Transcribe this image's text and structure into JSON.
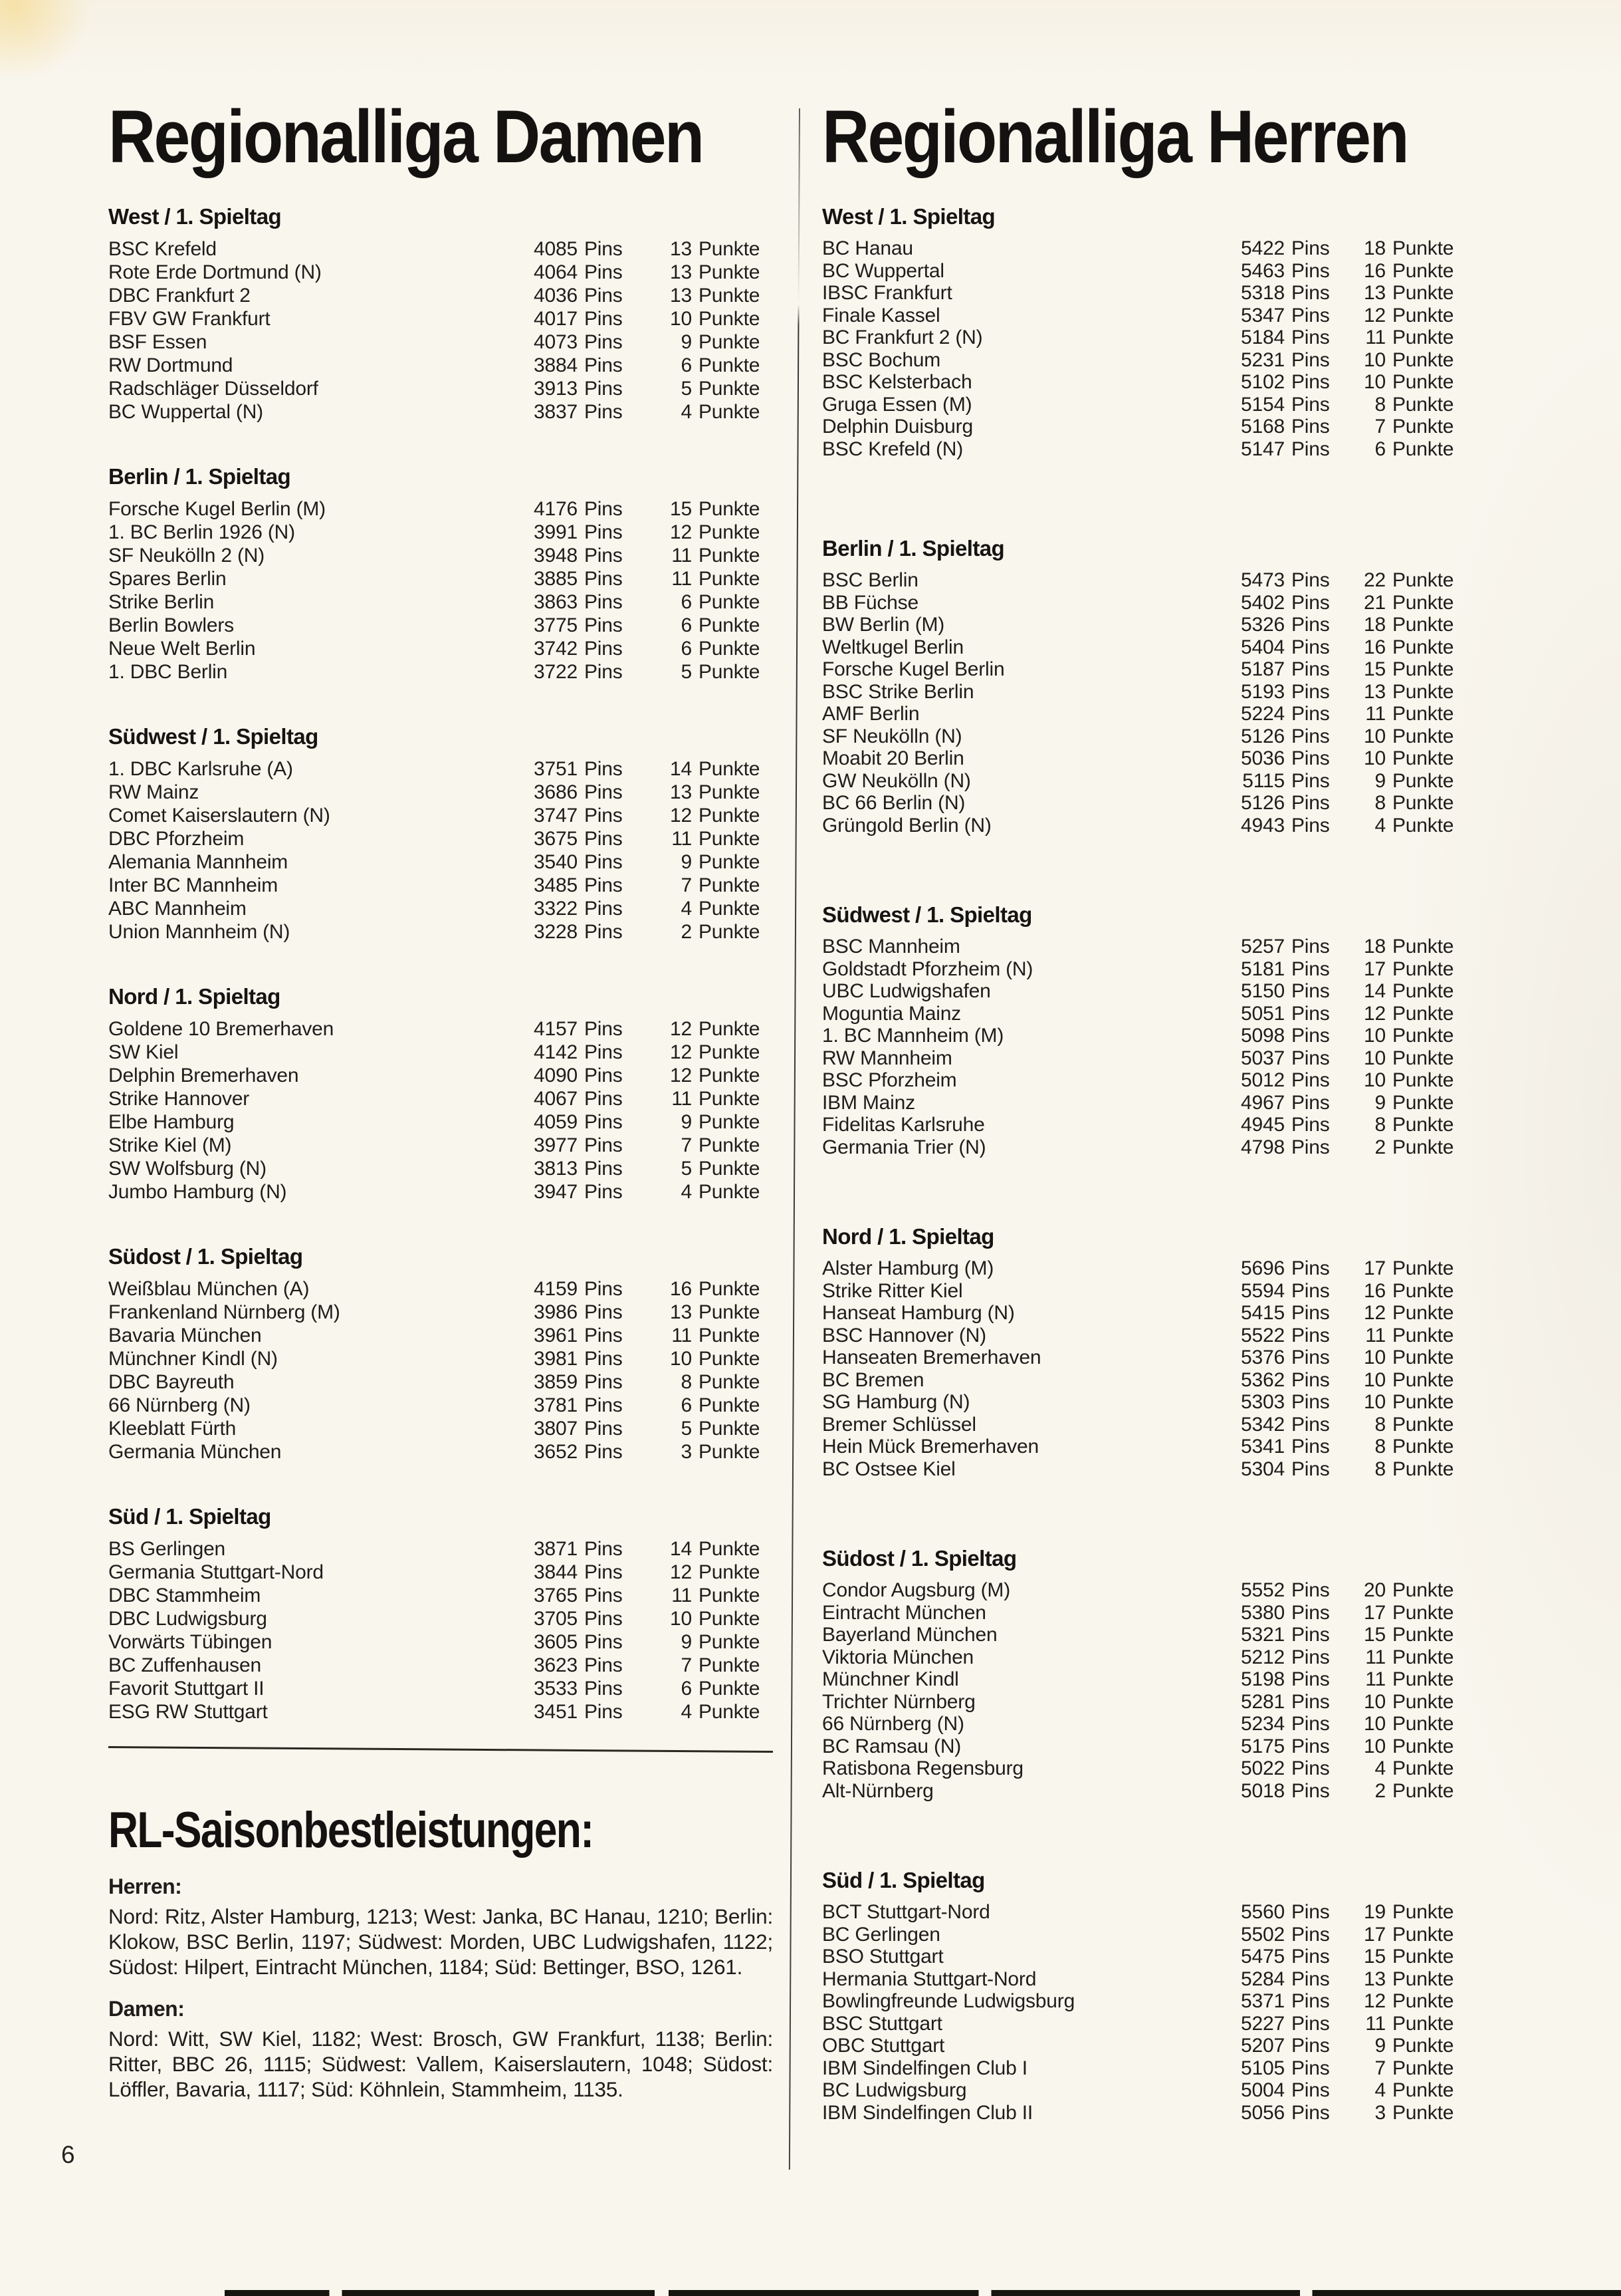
{
  "page": {
    "number": "6"
  },
  "units": {
    "pins": "Pins",
    "punkte": "Punkte"
  },
  "left": {
    "title": "Regionalliga Damen",
    "sections": [
      {
        "header": "West / 1. Spieltag",
        "rows": [
          {
            "club": "BSC Krefeld",
            "pins": "4085",
            "punkte": "13"
          },
          {
            "club": "Rote Erde Dortmund (N)",
            "pins": "4064",
            "punkte": "13"
          },
          {
            "club": "DBC Frankfurt 2",
            "pins": "4036",
            "punkte": "13"
          },
          {
            "club": "FBV GW Frankfurt",
            "pins": "4017",
            "punkte": "10"
          },
          {
            "club": "BSF Essen",
            "pins": "4073",
            "punkte": "9"
          },
          {
            "club": "RW Dortmund",
            "pins": "3884",
            "punkte": "6"
          },
          {
            "club": "Radschläger Düsseldorf",
            "pins": "3913",
            "punkte": "5"
          },
          {
            "club": "BC Wuppertal (N)",
            "pins": "3837",
            "punkte": "4"
          }
        ]
      },
      {
        "header": "Berlin / 1. Spieltag",
        "rows": [
          {
            "club": "Forsche Kugel Berlin (M)",
            "pins": "4176",
            "punkte": "15"
          },
          {
            "club": "1. BC Berlin 1926 (N)",
            "pins": "3991",
            "punkte": "12"
          },
          {
            "club": "SF Neukölln 2 (N)",
            "pins": "3948",
            "punkte": "11"
          },
          {
            "club": "Spares Berlin",
            "pins": "3885",
            "punkte": "11"
          },
          {
            "club": "Strike Berlin",
            "pins": "3863",
            "punkte": "6"
          },
          {
            "club": "Berlin Bowlers",
            "pins": "3775",
            "punkte": "6"
          },
          {
            "club": "Neue Welt Berlin",
            "pins": "3742",
            "punkte": "6"
          },
          {
            "club": "1. DBC Berlin",
            "pins": "3722",
            "punkte": "5"
          }
        ]
      },
      {
        "header": "Südwest / 1. Spieltag",
        "rows": [
          {
            "club": "1. DBC Karlsruhe (A)",
            "pins": "3751",
            "punkte": "14"
          },
          {
            "club": "RW Mainz",
            "pins": "3686",
            "punkte": "13"
          },
          {
            "club": "Comet Kaiserslautern (N)",
            "pins": "3747",
            "punkte": "12"
          },
          {
            "club": "DBC Pforzheim",
            "pins": "3675",
            "punkte": "11"
          },
          {
            "club": "Alemania Mannheim",
            "pins": "3540",
            "punkte": "9"
          },
          {
            "club": "Inter BC Mannheim",
            "pins": "3485",
            "punkte": "7"
          },
          {
            "club": "ABC Mannheim",
            "pins": "3322",
            "punkte": "4"
          },
          {
            "club": "Union Mannheim (N)",
            "pins": "3228",
            "punkte": "2"
          }
        ]
      },
      {
        "header": "Nord / 1. Spieltag",
        "rows": [
          {
            "club": "Goldene 10 Bremerhaven",
            "pins": "4157",
            "punkte": "12"
          },
          {
            "club": "SW Kiel",
            "pins": "4142",
            "punkte": "12"
          },
          {
            "club": "Delphin Bremerhaven",
            "pins": "4090",
            "punkte": "12"
          },
          {
            "club": "Strike Hannover",
            "pins": "4067",
            "punkte": "11"
          },
          {
            "club": "Elbe Hamburg",
            "pins": "4059",
            "punkte": "9"
          },
          {
            "club": "Strike Kiel (M)",
            "pins": "3977",
            "punkte": "7"
          },
          {
            "club": "SW Wolfsburg (N)",
            "pins": "3813",
            "punkte": "5"
          },
          {
            "club": "Jumbo Hamburg (N)",
            "pins": "3947",
            "punkte": "4"
          }
        ]
      },
      {
        "header": "Südost / 1. Spieltag",
        "rows": [
          {
            "club": "Weißblau München (A)",
            "pins": "4159",
            "punkte": "16"
          },
          {
            "club": "Frankenland Nürnberg (M)",
            "pins": "3986",
            "punkte": "13"
          },
          {
            "club": "Bavaria München",
            "pins": "3961",
            "punkte": "11"
          },
          {
            "club": "Münchner Kindl (N)",
            "pins": "3981",
            "punkte": "10"
          },
          {
            "club": "DBC Bayreuth",
            "pins": "3859",
            "punkte": "8"
          },
          {
            "club": "66 Nürnberg (N)",
            "pins": "3781",
            "punkte": "6"
          },
          {
            "club": "Kleeblatt Fürth",
            "pins": "3807",
            "punkte": "5"
          },
          {
            "club": "Germania München",
            "pins": "3652",
            "punkte": "3"
          }
        ]
      },
      {
        "header": "Süd / 1. Spieltag",
        "rows": [
          {
            "club": "BS Gerlingen",
            "pins": "3871",
            "punkte": "14"
          },
          {
            "club": "Germania Stuttgart-Nord",
            "pins": "3844",
            "punkte": "12"
          },
          {
            "club": "DBC Stammheim",
            "pins": "3765",
            "punkte": "11"
          },
          {
            "club": "DBC Ludwigsburg",
            "pins": "3705",
            "punkte": "10"
          },
          {
            "club": "Vorwärts Tübingen",
            "pins": "3605",
            "punkte": "9"
          },
          {
            "club": "BC Zuffenhausen",
            "pins": "3623",
            "punkte": "7"
          },
          {
            "club": "Favorit Stuttgart II",
            "pins": "3533",
            "punkte": "6"
          },
          {
            "club": "ESG RW Stuttgart",
            "pins": "3451",
            "punkte": "4"
          }
        ]
      }
    ],
    "best": {
      "title": "RL-Saisonbestleistungen:",
      "groups": [
        {
          "label": "Herren:",
          "text": "Nord: Ritz, Alster Hamburg, 1213; West: Janka, BC Hanau, 1210; Berlin: Klokow, BSC Berlin, 1197; Südwest: Morden, UBC Ludwigshafen, 1122; Südost: Hilpert, Eintracht München, 1184; Süd: Bettinger, BSO, 1261."
        },
        {
          "label": "Damen:",
          "text": "Nord: Witt, SW Kiel, 1182; West: Brosch, GW Frankfurt, 1138; Berlin: Ritter, BBC 26, 1115; Südwest: Vallem, Kaiserslautern, 1048; Südost: Löffler, Bavaria, 1117; Süd: Köhnlein, Stammheim, 1135."
        }
      ]
    }
  },
  "right": {
    "title": "Regionalliga Herren",
    "sections": [
      {
        "header": "West / 1. Spieltag",
        "rows": [
          {
            "club": "BC Hanau",
            "pins": "5422",
            "punkte": "18"
          },
          {
            "club": "BC Wuppertal",
            "pins": "5463",
            "punkte": "16"
          },
          {
            "club": "IBSC Frankfurt",
            "pins": "5318",
            "punkte": "13"
          },
          {
            "club": "Finale Kassel",
            "pins": "5347",
            "punkte": "12"
          },
          {
            "club": "BC Frankfurt 2 (N)",
            "pins": "5184",
            "punkte": "11"
          },
          {
            "club": "BSC Bochum",
            "pins": "5231",
            "punkte": "10"
          },
          {
            "club": "BSC Kelsterbach",
            "pins": "5102",
            "punkte": "10"
          },
          {
            "club": "Gruga Essen (M)",
            "pins": "5154",
            "punkte": "8"
          },
          {
            "club": "Delphin Duisburg",
            "pins": "5168",
            "punkte": "7"
          },
          {
            "club": "BSC Krefeld (N)",
            "pins": "5147",
            "punkte": "6"
          }
        ]
      },
      {
        "header": "Berlin / 1. Spieltag",
        "rows": [
          {
            "club": "BSC Berlin",
            "pins": "5473",
            "punkte": "22"
          },
          {
            "club": "BB Füchse",
            "pins": "5402",
            "punkte": "21"
          },
          {
            "club": "BW Berlin (M)",
            "pins": "5326",
            "punkte": "18"
          },
          {
            "club": "Weltkugel Berlin",
            "pins": "5404",
            "punkte": "16"
          },
          {
            "club": "Forsche Kugel Berlin",
            "pins": "5187",
            "punkte": "15"
          },
          {
            "club": "BSC Strike Berlin",
            "pins": "5193",
            "punkte": "13"
          },
          {
            "club": "AMF Berlin",
            "pins": "5224",
            "punkte": "11"
          },
          {
            "club": "SF Neukölln (N)",
            "pins": "5126",
            "punkte": "10"
          },
          {
            "club": "Moabit 20 Berlin",
            "pins": "5036",
            "punkte": "10"
          },
          {
            "club": "GW Neukölln (N)",
            "pins": "5115",
            "punkte": "9"
          },
          {
            "club": "BC 66 Berlin (N)",
            "pins": "5126",
            "punkte": "8"
          },
          {
            "club": "Grüngold Berlin (N)",
            "pins": "4943",
            "punkte": "4"
          }
        ]
      },
      {
        "header": "Südwest / 1. Spieltag",
        "rows": [
          {
            "club": "BSC Mannheim",
            "pins": "5257",
            "punkte": "18"
          },
          {
            "club": "Goldstadt Pforzheim (N)",
            "pins": "5181",
            "punkte": "17"
          },
          {
            "club": "UBC Ludwigshafen",
            "pins": "5150",
            "punkte": "14"
          },
          {
            "club": "Moguntia Mainz",
            "pins": "5051",
            "punkte": "12"
          },
          {
            "club": "1. BC Mannheim (M)",
            "pins": "5098",
            "punkte": "10"
          },
          {
            "club": "RW Mannheim",
            "pins": "5037",
            "punkte": "10"
          },
          {
            "club": "BSC Pforzheim",
            "pins": "5012",
            "punkte": "10"
          },
          {
            "club": "IBM Mainz",
            "pins": "4967",
            "punkte": "9"
          },
          {
            "club": "Fidelitas Karlsruhe",
            "pins": "4945",
            "punkte": "8"
          },
          {
            "club": "Germania Trier (N)",
            "pins": "4798",
            "punkte": "2"
          }
        ]
      },
      {
        "header": "Nord / 1. Spieltag",
        "rows": [
          {
            "club": "Alster Hamburg (M)",
            "pins": "5696",
            "punkte": "17"
          },
          {
            "club": "Strike Ritter Kiel",
            "pins": "5594",
            "punkte": "16"
          },
          {
            "club": "Hanseat Hamburg (N)",
            "pins": "5415",
            "punkte": "12"
          },
          {
            "club": "BSC Hannover (N)",
            "pins": "5522",
            "punkte": "11"
          },
          {
            "club": "Hanseaten Bremerhaven",
            "pins": "5376",
            "punkte": "10"
          },
          {
            "club": "BC Bremen",
            "pins": "5362",
            "punkte": "10"
          },
          {
            "club": "SG Hamburg (N)",
            "pins": "5303",
            "punkte": "10"
          },
          {
            "club": "Bremer Schlüssel",
            "pins": "5342",
            "punkte": "8"
          },
          {
            "club": "Hein Mück Bremerhaven",
            "pins": "5341",
            "punkte": "8"
          },
          {
            "club": "BC Ostsee Kiel",
            "pins": "5304",
            "punkte": "8"
          }
        ]
      },
      {
        "header": "Südost / 1. Spieltag",
        "rows": [
          {
            "club": "Condor Augsburg (M)",
            "pins": "5552",
            "punkte": "20"
          },
          {
            "club": "Eintracht München",
            "pins": "5380",
            "punkte": "17"
          },
          {
            "club": "Bayerland München",
            "pins": "5321",
            "punkte": "15"
          },
          {
            "club": "Viktoria München",
            "pins": "5212",
            "punkte": "11"
          },
          {
            "club": "Münchner Kindl",
            "pins": "5198",
            "punkte": "11"
          },
          {
            "club": "Trichter Nürnberg",
            "pins": "5281",
            "punkte": "10"
          },
          {
            "club": "66 Nürnberg (N)",
            "pins": "5234",
            "punkte": "10"
          },
          {
            "club": "BC Ramsau (N)",
            "pins": "5175",
            "punkte": "10"
          },
          {
            "club": "Ratisbona Regensburg",
            "pins": "5022",
            "punkte": "4"
          },
          {
            "club": "Alt-Nürnberg",
            "pins": "5018",
            "punkte": "2"
          }
        ]
      },
      {
        "header": "Süd / 1. Spieltag",
        "rows": [
          {
            "club": "BCT Stuttgart-Nord",
            "pins": "5560",
            "punkte": "19"
          },
          {
            "club": "BC Gerlingen",
            "pins": "5502",
            "punkte": "17"
          },
          {
            "club": "BSO Stuttgart",
            "pins": "5475",
            "punkte": "15"
          },
          {
            "club": "Hermania Stuttgart-Nord",
            "pins": "5284",
            "punkte": "13"
          },
          {
            "club": "Bowlingfreunde Ludwigsburg",
            "pins": "5371",
            "punkte": "12"
          },
          {
            "club": "BSC Stuttgart",
            "pins": "5227",
            "punkte": "11"
          },
          {
            "club": "OBC Stuttgart",
            "pins": "5207",
            "punkte": "9"
          },
          {
            "club": "IBM Sindelfingen Club I",
            "pins": "5105",
            "punkte": "7"
          },
          {
            "club": "BC Ludwigsburg",
            "pins": "5004",
            "punkte": "4"
          },
          {
            "club": "IBM Sindelfingen Club II",
            "pins": "5056",
            "punkte": "3"
          }
        ]
      }
    ]
  }
}
